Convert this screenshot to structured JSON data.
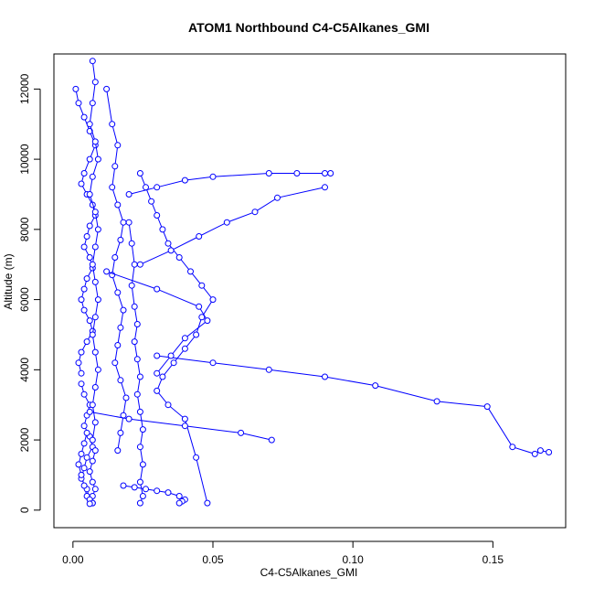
{
  "chart_data": {
    "type": "scatter",
    "title": "ATOM1 Northbound C4-C5Alkanes_GMI",
    "xlabel": "C4-C5Alkanes_GMI",
    "ylabel": "Altitude (m)",
    "xlim": [
      -0.0068,
      0.176
    ],
    "ylim": [
      -500,
      13000
    ],
    "x_ticks": [
      0.0,
      0.05,
      0.1,
      0.15
    ],
    "x_tick_labels": [
      "0.00",
      "0.05",
      "0.10",
      "0.15"
    ],
    "y_ticks": [
      0,
      2000,
      4000,
      6000,
      8000,
      10000,
      12000
    ],
    "y_tick_labels": [
      "0",
      "2000",
      "4000",
      "6000",
      "8000",
      "10000",
      "12000"
    ],
    "grid": false,
    "legend": "none",
    "colors": {
      "series": "#0000ff"
    },
    "series": [
      {
        "x": [
          0.001,
          0.002,
          0.004,
          0.006,
          0.008,
          0.006,
          0.004,
          0.003,
          0.005,
          0.007,
          0.008,
          0.006,
          0.005,
          0.004,
          0.006,
          0.007,
          0.005,
          0.004,
          0.003,
          0.004,
          0.006,
          0.007,
          0.005,
          0.003,
          0.002,
          0.003
        ],
        "y": [
          12000,
          11600,
          11200,
          10800,
          10400,
          10000,
          9600,
          9300,
          9000,
          8700,
          8400,
          8100,
          7800,
          7500,
          7200,
          6900,
          6600,
          6300,
          6000,
          5700,
          5400,
          5100,
          4800,
          4500,
          4200,
          3900
        ]
      },
      {
        "x": [
          0.003,
          0.004,
          0.006,
          0.005,
          0.004,
          0.006,
          0.007,
          0.005,
          0.004,
          0.003,
          0.005,
          0.006,
          0.007,
          0.005,
          0.004,
          0.003,
          0.002,
          0.003,
          0.004,
          0.005
        ],
        "y": [
          3600,
          3300,
          3000,
          2700,
          2400,
          2100,
          1800,
          1500,
          1200,
          900,
          600,
          300,
          200,
          400,
          700,
          1000,
          1300,
          1600,
          1900,
          2200
        ]
      },
      {
        "x": [
          0.007,
          0.008,
          0.007,
          0.006,
          0.008,
          0.009,
          0.007,
          0.006,
          0.008,
          0.009,
          0.008,
          0.007,
          0.008,
          0.009,
          0.008,
          0.007,
          0.008,
          0.009,
          0.008,
          0.007,
          0.008,
          0.007
        ],
        "y": [
          12800,
          12200,
          11600,
          11000,
          10500,
          10000,
          9500,
          9000,
          8500,
          8000,
          7500,
          7000,
          6500,
          6000,
          5500,
          5000,
          4500,
          4000,
          3500,
          3000,
          2500,
          2000
        ]
      },
      {
        "x": [
          0.008,
          0.007,
          0.006,
          0.007,
          0.008,
          0.007,
          0.006,
          0.007,
          0.006
        ],
        "y": [
          1700,
          1400,
          1100,
          800,
          600,
          400,
          300,
          200,
          180
        ]
      },
      {
        "x": [
          0.012,
          0.014,
          0.016,
          0.015,
          0.014,
          0.016,
          0.018,
          0.017,
          0.015,
          0.014,
          0.016,
          0.018,
          0.017,
          0.016,
          0.015,
          0.017,
          0.019,
          0.018,
          0.017,
          0.016
        ],
        "y": [
          12000,
          11000,
          10400,
          9800,
          9200,
          8700,
          8200,
          7700,
          7200,
          6700,
          6200,
          5700,
          5200,
          4700,
          4200,
          3700,
          3200,
          2700,
          2200,
          1700
        ]
      },
      {
        "x": [
          0.02,
          0.021,
          0.022,
          0.021,
          0.022,
          0.023,
          0.022,
          0.023,
          0.024,
          0.023,
          0.024,
          0.025,
          0.024,
          0.025,
          0.024,
          0.025,
          0.024
        ],
        "y": [
          8200,
          7600,
          7000,
          6400,
          5800,
          5300,
          4800,
          4300,
          3800,
          3300,
          2800,
          2300,
          1800,
          1300,
          800,
          400,
          200
        ]
      },
      {
        "x": [
          0.024,
          0.026,
          0.028,
          0.03,
          0.032,
          0.034,
          0.038,
          0.042,
          0.046,
          0.05,
          0.046,
          0.044,
          0.04,
          0.036,
          0.032,
          0.03,
          0.034,
          0.04,
          0.044,
          0.048
        ],
        "y": [
          9600,
          9200,
          8800,
          8400,
          8000,
          7600,
          7200,
          6800,
          6400,
          6000,
          5500,
          5000,
          4600,
          4200,
          3800,
          3400,
          3000,
          2600,
          1500,
          200
        ]
      },
      {
        "x": [
          0.018,
          0.022,
          0.026,
          0.03,
          0.034,
          0.038,
          0.04,
          0.039,
          0.038
        ],
        "y": [
          700,
          650,
          600,
          550,
          500,
          400,
          300,
          250,
          200
        ]
      },
      {
        "x": [
          0.02,
          0.03,
          0.04,
          0.05,
          0.07,
          0.08,
          0.09,
          0.092
        ],
        "y": [
          9000,
          9200,
          9400,
          9500,
          9600,
          9600,
          9600,
          9600
        ]
      },
      {
        "x": [
          0.024,
          0.035,
          0.045,
          0.055,
          0.065,
          0.073,
          0.09
        ],
        "y": [
          7000,
          7400,
          7800,
          8200,
          8500,
          8900,
          9200
        ]
      },
      {
        "x": [
          0.03,
          0.05,
          0.07,
          0.09,
          0.108,
          0.13,
          0.148,
          0.157,
          0.165,
          0.167,
          0.17
        ],
        "y": [
          4400,
          4200,
          4000,
          3800,
          3550,
          3100,
          2950,
          1800,
          1600,
          1700,
          1650
        ]
      },
      {
        "x": [
          0.006,
          0.02,
          0.04,
          0.06,
          0.071
        ],
        "y": [
          2800,
          2600,
          2400,
          2200,
          2000
        ]
      },
      {
        "x": [
          0.012,
          0.03,
          0.045,
          0.048,
          0.04,
          0.035,
          0.03
        ],
        "y": [
          6800,
          6300,
          5800,
          5400,
          4900,
          4400,
          3900
        ]
      }
    ]
  }
}
